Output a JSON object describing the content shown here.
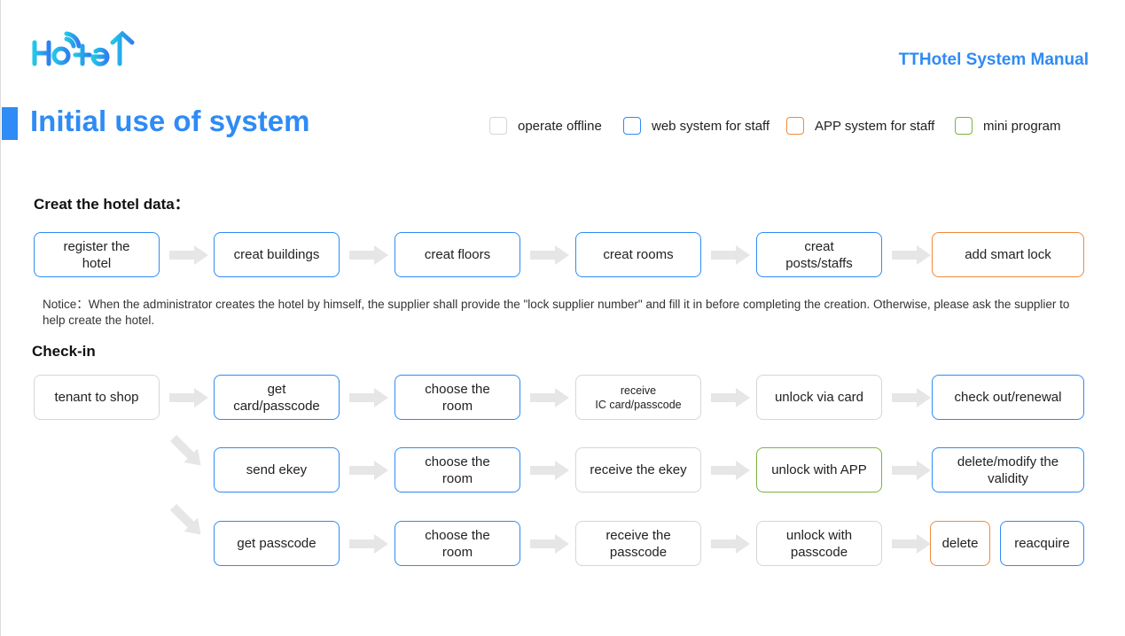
{
  "logo_text": "Hotel",
  "header": {
    "manual_title": "TTHotel System Manual",
    "page_title": "Initial use of system"
  },
  "colors": {
    "accent": "#2f8bf5",
    "offline": "#d6d6d6",
    "web": "#2f8bf5",
    "app": "#f08a3c",
    "mini": "#7cb342",
    "arrow": "#e6e6e6"
  },
  "legend": [
    {
      "type": "offline",
      "label": "operate offline"
    },
    {
      "type": "web",
      "label": "web system for staff"
    },
    {
      "type": "app",
      "label": "APP system for staff"
    },
    {
      "type": "mini",
      "label": "mini program"
    }
  ],
  "section1": {
    "title": "Creat the hotel data：",
    "steps": [
      {
        "label": "register the\nhotel",
        "type": "web"
      },
      {
        "label": "creat buildings",
        "type": "web"
      },
      {
        "label": "creat floors",
        "type": "web"
      },
      {
        "label": "creat rooms",
        "type": "web"
      },
      {
        "label": "creat\nposts/staffs",
        "type": "web"
      },
      {
        "label": "add smart lock",
        "type": "app"
      }
    ],
    "notice": "Notice：When the administrator creates the hotel by himself, the supplier shall provide the \"lock supplier number\" and fill it in before completing the creation. Otherwise, please ask the supplier to help create the hotel."
  },
  "section2": {
    "title": "Check-in",
    "start": {
      "label": "tenant to shop",
      "type": "offline"
    },
    "rows": [
      [
        {
          "label": "get\ncard/passcode",
          "type": "web"
        },
        {
          "label": "choose the\nroom",
          "type": "web"
        },
        {
          "label": "receive\nIC card/passcode",
          "type": "offline",
          "small": true
        },
        {
          "label": "unlock via card",
          "type": "offline"
        },
        {
          "label": "check out/renewal",
          "type": "web"
        }
      ],
      [
        {
          "label": "send ekey",
          "type": "web"
        },
        {
          "label": "choose the\nroom",
          "type": "web"
        },
        {
          "label": "receive the ekey",
          "type": "offline"
        },
        {
          "label": "unlock with APP",
          "type": "mini"
        },
        {
          "label": "delete/modify the\nvalidity",
          "type": "web"
        }
      ],
      [
        {
          "label": "get passcode",
          "type": "web"
        },
        {
          "label": "choose the\nroom",
          "type": "web"
        },
        {
          "label": "receive the\npasscode",
          "type": "offline"
        },
        {
          "label": "unlock with\npasscode",
          "type": "offline"
        },
        {
          "label": "delete",
          "type": "app"
        },
        {
          "label": "reacquire",
          "type": "web"
        }
      ]
    ]
  }
}
